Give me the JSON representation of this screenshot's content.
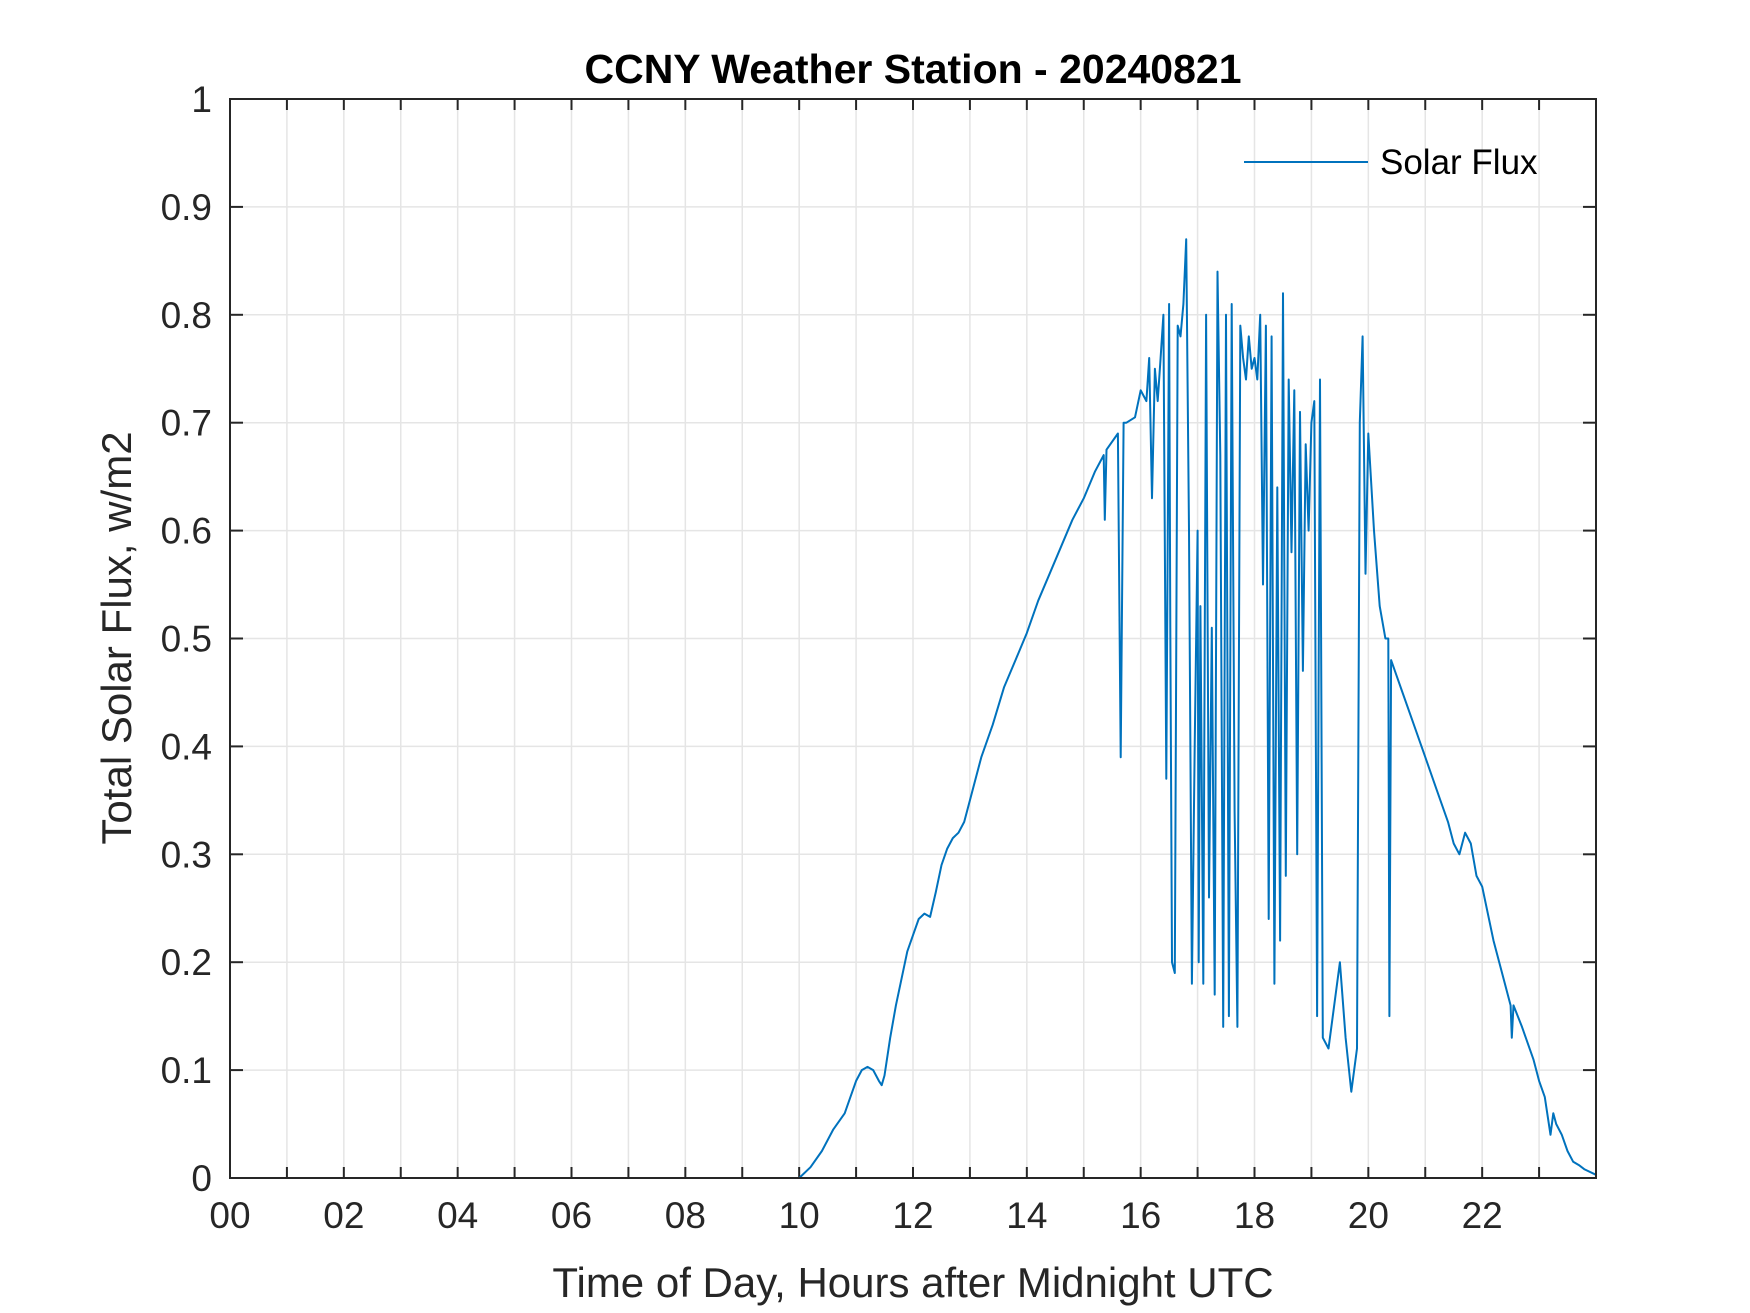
{
  "chart_data": {
    "type": "line",
    "title": "CCNY Weather Station - 20240821",
    "xlabel": "Time of Day, Hours after Midnight UTC",
    "ylabel": "Total Solar Flux, w/m2",
    "xlim": [
      0,
      24
    ],
    "ylim": [
      0,
      1
    ],
    "xticks": [
      0,
      2,
      4,
      6,
      8,
      10,
      12,
      14,
      16,
      18,
      20,
      22
    ],
    "xtick_labels": [
      "00",
      "02",
      "04",
      "06",
      "08",
      "10",
      "12",
      "14",
      "16",
      "18",
      "20",
      "22"
    ],
    "yticks": [
      0,
      0.1,
      0.2,
      0.3,
      0.4,
      0.5,
      0.6,
      0.7,
      0.8,
      0.9,
      1
    ],
    "ytick_labels": [
      "0",
      "0.1",
      "0.2",
      "0.3",
      "0.4",
      "0.5",
      "0.6",
      "0.7",
      "0.8",
      "0.9",
      "1"
    ],
    "grid": true,
    "legend_position": "top-right",
    "colors": {
      "series": "#0072BD",
      "axes": "#262626",
      "grid": "#e5e5e5"
    },
    "series": [
      {
        "name": "Solar Flux",
        "x": [
          0,
          10.0,
          10.2,
          10.4,
          10.6,
          10.8,
          10.9,
          11.0,
          11.1,
          11.2,
          11.3,
          11.4,
          11.45,
          11.5,
          11.6,
          11.7,
          11.8,
          11.9,
          12.0,
          12.1,
          12.2,
          12.3,
          12.4,
          12.5,
          12.6,
          12.7,
          12.8,
          12.9,
          13.0,
          13.1,
          13.2,
          13.4,
          13.6,
          13.8,
          14.0,
          14.2,
          14.4,
          14.6,
          14.8,
          15.0,
          15.2,
          15.35,
          15.37,
          15.4,
          15.6,
          15.65,
          15.7,
          15.75,
          15.9,
          16.0,
          16.1,
          16.15,
          16.2,
          16.25,
          16.3,
          16.35,
          16.4,
          16.45,
          16.5,
          16.52,
          16.55,
          16.6,
          16.65,
          16.7,
          16.75,
          16.8,
          16.85,
          16.9,
          16.95,
          17.0,
          17.02,
          17.05,
          17.1,
          17.15,
          17.2,
          17.25,
          17.3,
          17.35,
          17.4,
          17.45,
          17.5,
          17.55,
          17.6,
          17.65,
          17.7,
          17.75,
          17.8,
          17.85,
          17.9,
          17.95,
          18.0,
          18.05,
          18.1,
          18.15,
          18.2,
          18.25,
          18.3,
          18.35,
          18.4,
          18.45,
          18.5,
          18.55,
          18.6,
          18.65,
          18.7,
          18.75,
          18.8,
          18.85,
          18.9,
          18.95,
          19.0,
          19.05,
          19.1,
          19.15,
          19.2,
          19.3,
          19.4,
          19.5,
          19.6,
          19.7,
          19.8,
          19.85,
          19.9,
          19.95,
          20.0,
          20.1,
          20.2,
          20.3,
          20.35,
          20.37,
          20.4,
          20.6,
          20.8,
          21.0,
          21.2,
          21.4,
          21.5,
          21.6,
          21.7,
          21.8,
          21.9,
          22.0,
          22.2,
          22.4,
          22.5,
          22.52,
          22.55,
          22.7,
          22.9,
          23.0,
          23.1,
          23.2,
          23.25,
          23.3,
          23.4,
          23.5,
          23.6,
          23.7,
          23.8,
          24.0
        ],
        "y": [
          0,
          0,
          0.01,
          0.025,
          0.045,
          0.06,
          0.075,
          0.09,
          0.1,
          0.103,
          0.1,
          0.09,
          0.086,
          0.095,
          0.13,
          0.16,
          0.185,
          0.21,
          0.225,
          0.24,
          0.245,
          0.242,
          0.265,
          0.29,
          0.305,
          0.315,
          0.32,
          0.33,
          0.35,
          0.37,
          0.39,
          0.42,
          0.455,
          0.48,
          0.505,
          0.535,
          0.56,
          0.585,
          0.61,
          0.63,
          0.655,
          0.67,
          0.61,
          0.675,
          0.69,
          0.39,
          0.7,
          0.7,
          0.705,
          0.73,
          0.72,
          0.76,
          0.63,
          0.75,
          0.72,
          0.76,
          0.8,
          0.37,
          0.81,
          0.51,
          0.2,
          0.19,
          0.79,
          0.78,
          0.81,
          0.87,
          0.6,
          0.18,
          0.4,
          0.6,
          0.2,
          0.53,
          0.18,
          0.8,
          0.26,
          0.51,
          0.17,
          0.84,
          0.67,
          0.14,
          0.8,
          0.15,
          0.81,
          0.34,
          0.14,
          0.79,
          0.76,
          0.74,
          0.78,
          0.75,
          0.76,
          0.74,
          0.8,
          0.55,
          0.79,
          0.24,
          0.78,
          0.18,
          0.64,
          0.22,
          0.82,
          0.28,
          0.74,
          0.58,
          0.73,
          0.3,
          0.71,
          0.47,
          0.68,
          0.6,
          0.7,
          0.72,
          0.15,
          0.74,
          0.13,
          0.12,
          0.16,
          0.2,
          0.13,
          0.08,
          0.12,
          0.7,
          0.78,
          0.56,
          0.69,
          0.6,
          0.53,
          0.5,
          0.5,
          0.15,
          0.48,
          0.45,
          0.42,
          0.39,
          0.36,
          0.33,
          0.31,
          0.3,
          0.32,
          0.31,
          0.28,
          0.27,
          0.22,
          0.18,
          0.16,
          0.13,
          0.16,
          0.14,
          0.11,
          0.09,
          0.075,
          0.04,
          0.06,
          0.05,
          0.04,
          0.025,
          0.015,
          0.012,
          0.008,
          0.003
        ]
      }
    ]
  }
}
